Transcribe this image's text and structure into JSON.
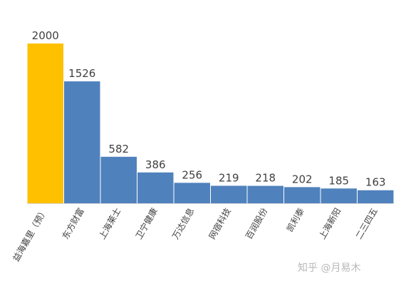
{
  "chart_data": {
    "type": "bar",
    "categories": [
      "益海嘉里（预）",
      "东方财富",
      "上海莱士",
      "卫宁健康",
      "万达信息",
      "网宿科技",
      "百润股份",
      "凯利泰",
      "上海新阳",
      "二三四五"
    ],
    "values": [
      2000,
      1526,
      582,
      386,
      256,
      219,
      218,
      202,
      185,
      163
    ],
    "colors": [
      "#ffc000",
      "#4f81bd",
      "#4f81bd",
      "#4f81bd",
      "#4f81bd",
      "#4f81bd",
      "#4f81bd",
      "#4f81bd",
      "#4f81bd",
      "#4f81bd"
    ],
    "watermark": "知乎 @月易木"
  }
}
